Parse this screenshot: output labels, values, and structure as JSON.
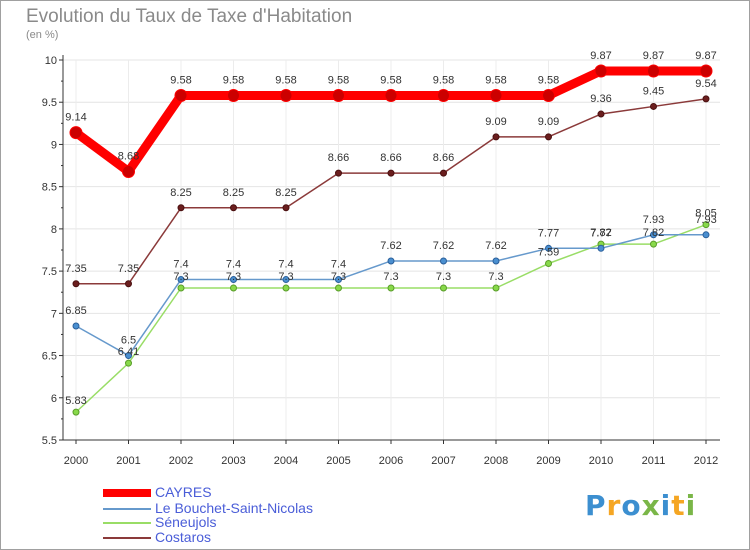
{
  "title": "Evolution du Taux de Taxe d'Habitation",
  "unit_label": "(en %)",
  "logo": {
    "text": "Proxiti",
    "letters": [
      "P",
      "r",
      "o",
      "x",
      "i",
      "t",
      "i"
    ],
    "colors": [
      "#3c8fd0",
      "#f5a623",
      "#3c8fd0",
      "#7ab648",
      "#3c8fd0",
      "#f5a623",
      "#7ab648"
    ]
  },
  "chart_data": {
    "type": "line",
    "title": "Evolution du Taux de Taxe d'Habitation",
    "xlabel": "",
    "ylabel": "(en %)",
    "ylim": [
      5.5,
      10
    ],
    "yticks": [
      "5.5",
      "6",
      "6.5",
      "7",
      "7.5",
      "8",
      "8.5",
      "9",
      "9.5",
      "10"
    ],
    "categories": [
      "2000",
      "2001",
      "2002",
      "2003",
      "2004",
      "2005",
      "2006",
      "2007",
      "2008",
      "2009",
      "2010",
      "2011",
      "2012"
    ],
    "legend_position": "bottom-left",
    "series": [
      {
        "name": "CAYRES",
        "color": "#ff0000",
        "values": [
          9.14,
          8.68,
          9.58,
          9.58,
          9.58,
          9.58,
          9.58,
          9.58,
          9.58,
          9.58,
          9.87,
          9.87,
          9.87
        ],
        "labels": [
          "9.14",
          "8.68",
          "9.58",
          "9.58",
          "9.58",
          "9.58",
          "9.58",
          "9.58",
          "9.58",
          "9.58",
          "9.87",
          "9.87",
          "9.87"
        ]
      },
      {
        "name": "Le Bouchet-Saint-Nicolas",
        "color": "#6699cc",
        "values": [
          6.85,
          6.5,
          7.4,
          7.4,
          7.4,
          7.4,
          7.62,
          7.62,
          7.62,
          7.77,
          7.77,
          7.93,
          7.93
        ],
        "labels": [
          "6.85",
          "6.5",
          "7.4",
          "7.4",
          "7.4",
          "7.4",
          "7.62",
          "7.62",
          "7.62",
          "7.77",
          "7.77",
          "7.93",
          "7.93"
        ]
      },
      {
        "name": "Séneujols",
        "color": "#99dd66",
        "values": [
          5.83,
          6.41,
          7.3,
          7.3,
          7.3,
          7.3,
          7.3,
          7.3,
          7.3,
          7.59,
          7.82,
          7.82,
          8.05
        ],
        "labels": [
          "5.83",
          "6.41",
          "7.3",
          "7.3",
          "7.3",
          "7.3",
          "7.3",
          "7.3",
          "7.3",
          "7.59",
          "7.82",
          "7.82",
          "8.05"
        ]
      },
      {
        "name": "Costaros",
        "color": "#8b3a3a",
        "values": [
          7.35,
          7.35,
          8.25,
          8.25,
          8.25,
          8.66,
          8.66,
          8.66,
          9.09,
          9.09,
          9.36,
          9.45,
          9.54
        ],
        "labels": [
          "7.35",
          "7.35",
          "8.25",
          "8.25",
          "8.25",
          "8.66",
          "8.66",
          "8.66",
          "9.09",
          "9.09",
          "9.36",
          "9.45",
          "9.54"
        ]
      }
    ]
  }
}
